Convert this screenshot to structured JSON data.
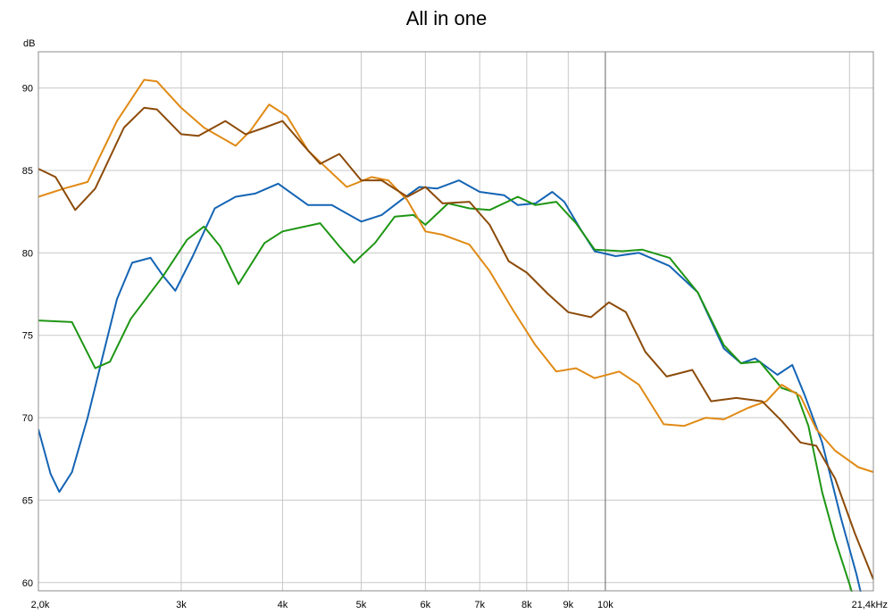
{
  "chart_data": {
    "type": "line",
    "title": "All in one",
    "ylabel": "dB",
    "xlabel": "",
    "x_scale": "log",
    "xlim": [
      2000,
      21400
    ],
    "ylim": [
      59.5,
      92.2
    ],
    "grid": true,
    "y_ticks": [
      {
        "value": 60,
        "label": "60"
      },
      {
        "value": 65,
        "label": "65"
      },
      {
        "value": 70,
        "label": "70"
      },
      {
        "value": 75,
        "label": "75"
      },
      {
        "value": 80,
        "label": "80"
      },
      {
        "value": 85,
        "label": "85"
      },
      {
        "value": 90,
        "label": "90"
      }
    ],
    "x_ticks": [
      {
        "value": 2000,
        "label": "2,0k"
      },
      {
        "value": 3000,
        "label": "3k"
      },
      {
        "value": 4000,
        "label": "4k"
      },
      {
        "value": 5000,
        "label": "5k"
      },
      {
        "value": 6000,
        "label": "6k"
      },
      {
        "value": 7000,
        "label": "7k"
      },
      {
        "value": 8000,
        "label": "8k"
      },
      {
        "value": 9000,
        "label": "9k"
      },
      {
        "value": 10000,
        "label": "10k"
      },
      {
        "value": 21400,
        "label": "21,4kHz"
      }
    ],
    "x_gridlines": [
      3000,
      4000,
      5000,
      6000,
      7000,
      8000,
      9000,
      10000,
      20000
    ],
    "emphasis_gridline": 10000,
    "series": [
      {
        "color": "#1464b4",
        "points": [
          [
            2000,
            69.3
          ],
          [
            2070,
            66.6
          ],
          [
            2122,
            65.5
          ],
          [
            2200,
            66.7
          ],
          [
            2300,
            70.0
          ],
          [
            2400,
            73.7
          ],
          [
            2500,
            77.2
          ],
          [
            2610,
            79.4
          ],
          [
            2750,
            79.7
          ],
          [
            2850,
            78.6
          ],
          [
            2950,
            77.7
          ],
          [
            3100,
            79.8
          ],
          [
            3300,
            82.7
          ],
          [
            3500,
            83.4
          ],
          [
            3700,
            83.6
          ],
          [
            3950,
            84.2
          ],
          [
            4300,
            82.9
          ],
          [
            4600,
            82.9
          ],
          [
            5000,
            81.9
          ],
          [
            5300,
            82.3
          ],
          [
            5600,
            83.2
          ],
          [
            5900,
            84.0
          ],
          [
            6200,
            83.9
          ],
          [
            6600,
            84.4
          ],
          [
            7000,
            83.7
          ],
          [
            7500,
            83.5
          ],
          [
            7800,
            82.9
          ],
          [
            8200,
            83.0
          ],
          [
            8600,
            83.7
          ],
          [
            8900,
            83.1
          ],
          [
            9300,
            81.5
          ],
          [
            9700,
            80.1
          ],
          [
            10300,
            79.8
          ],
          [
            11000,
            80.0
          ],
          [
            12000,
            79.2
          ],
          [
            13000,
            77.6
          ],
          [
            14000,
            74.2
          ],
          [
            14700,
            73.3
          ],
          [
            15300,
            73.6
          ],
          [
            16300,
            72.6
          ],
          [
            17000,
            73.2
          ],
          [
            17600,
            71.4
          ],
          [
            18500,
            68.5
          ],
          [
            19500,
            64.0
          ],
          [
            20400,
            60.5
          ],
          [
            20900,
            58.3
          ]
        ]
      },
      {
        "color": "#1e9614",
        "points": [
          [
            2000,
            75.9
          ],
          [
            2200,
            75.8
          ],
          [
            2350,
            73.0
          ],
          [
            2450,
            73.4
          ],
          [
            2600,
            76.0
          ],
          [
            2850,
            78.6
          ],
          [
            3050,
            80.8
          ],
          [
            3200,
            81.6
          ],
          [
            3350,
            80.4
          ],
          [
            3530,
            78.1
          ],
          [
            3800,
            80.6
          ],
          [
            4000,
            81.3
          ],
          [
            4450,
            81.8
          ],
          [
            4700,
            80.4
          ],
          [
            4900,
            79.4
          ],
          [
            5200,
            80.6
          ],
          [
            5500,
            82.2
          ],
          [
            5800,
            82.3
          ],
          [
            6000,
            81.7
          ],
          [
            6400,
            83.0
          ],
          [
            6800,
            82.7
          ],
          [
            7200,
            82.6
          ],
          [
            7800,
            83.4
          ],
          [
            8200,
            82.9
          ],
          [
            8700,
            83.1
          ],
          [
            9200,
            81.8
          ],
          [
            9700,
            80.2
          ],
          [
            10500,
            80.1
          ],
          [
            11100,
            80.2
          ],
          [
            12000,
            79.7
          ],
          [
            13000,
            77.6
          ],
          [
            14000,
            74.4
          ],
          [
            14700,
            73.3
          ],
          [
            15500,
            73.4
          ],
          [
            16500,
            71.8
          ],
          [
            17200,
            71.5
          ],
          [
            17800,
            69.5
          ],
          [
            18500,
            65.5
          ],
          [
            19200,
            62.6
          ],
          [
            20000,
            59.9
          ],
          [
            20400,
            58.5
          ]
        ]
      },
      {
        "color": "#e08a14",
        "points": [
          [
            2000,
            83.4
          ],
          [
            2150,
            83.9
          ],
          [
            2300,
            84.3
          ],
          [
            2500,
            88.0
          ],
          [
            2700,
            90.5
          ],
          [
            2800,
            90.4
          ],
          [
            3000,
            88.8
          ],
          [
            3200,
            87.6
          ],
          [
            3500,
            86.5
          ],
          [
            3650,
            87.4
          ],
          [
            3850,
            89.0
          ],
          [
            4050,
            88.3
          ],
          [
            4300,
            86.2
          ],
          [
            4800,
            84.0
          ],
          [
            5150,
            84.6
          ],
          [
            5400,
            84.4
          ],
          [
            5700,
            83.2
          ],
          [
            6000,
            81.3
          ],
          [
            6300,
            81.1
          ],
          [
            6800,
            80.5
          ],
          [
            7200,
            78.9
          ],
          [
            7700,
            76.5
          ],
          [
            8200,
            74.4
          ],
          [
            8700,
            72.8
          ],
          [
            9200,
            73.0
          ],
          [
            9700,
            72.4
          ],
          [
            10400,
            72.8
          ],
          [
            11000,
            72.0
          ],
          [
            11800,
            69.6
          ],
          [
            12500,
            69.5
          ],
          [
            13300,
            70.0
          ],
          [
            14000,
            69.9
          ],
          [
            15000,
            70.6
          ],
          [
            15800,
            71.0
          ],
          [
            16500,
            72.0
          ],
          [
            17400,
            71.3
          ],
          [
            18200,
            69.3
          ],
          [
            19200,
            68.0
          ],
          [
            20500,
            67.0
          ],
          [
            21400,
            66.7
          ]
        ]
      },
      {
        "color": "#8c4b0a",
        "points": [
          [
            2000,
            85.1
          ],
          [
            2100,
            84.6
          ],
          [
            2220,
            82.6
          ],
          [
            2350,
            83.9
          ],
          [
            2550,
            87.6
          ],
          [
            2700,
            88.8
          ],
          [
            2800,
            88.7
          ],
          [
            3000,
            87.2
          ],
          [
            3150,
            87.1
          ],
          [
            3400,
            88.0
          ],
          [
            3600,
            87.2
          ],
          [
            3800,
            87.6
          ],
          [
            4000,
            88.0
          ],
          [
            4250,
            86.5
          ],
          [
            4450,
            85.4
          ],
          [
            4700,
            86.0
          ],
          [
            5000,
            84.4
          ],
          [
            5300,
            84.4
          ],
          [
            5700,
            83.4
          ],
          [
            6000,
            84.0
          ],
          [
            6300,
            83.0
          ],
          [
            6800,
            83.1
          ],
          [
            7200,
            81.7
          ],
          [
            7600,
            79.5
          ],
          [
            8000,
            78.8
          ],
          [
            8500,
            77.5
          ],
          [
            9000,
            76.4
          ],
          [
            9600,
            76.1
          ],
          [
            10100,
            77.0
          ],
          [
            10600,
            76.4
          ],
          [
            11200,
            74.0
          ],
          [
            11900,
            72.5
          ],
          [
            12800,
            72.9
          ],
          [
            13500,
            71.0
          ],
          [
            14500,
            71.2
          ],
          [
            15600,
            71.0
          ],
          [
            16500,
            69.8
          ],
          [
            17400,
            68.5
          ],
          [
            18200,
            68.3
          ],
          [
            19200,
            66.3
          ],
          [
            20300,
            63.0
          ],
          [
            21400,
            60.2
          ]
        ]
      }
    ]
  }
}
